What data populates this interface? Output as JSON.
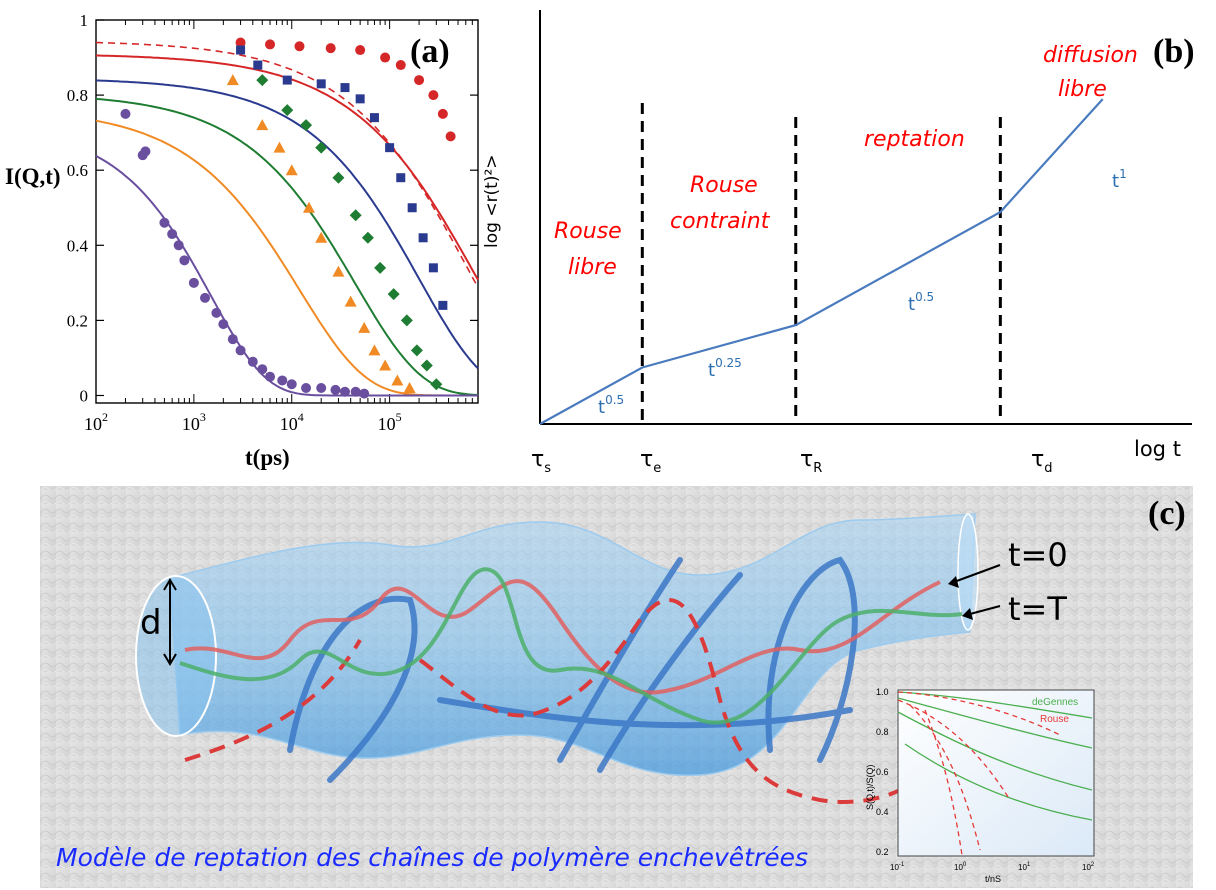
{
  "chart_data": [
    {
      "panel": "(a)",
      "type": "scatter",
      "xlabel": "t(ps)",
      "ylabel": "I(Q,t)",
      "xscale": "log",
      "xlim": [
        100,
        800000
      ],
      "ylim": [
        -0.02,
        1.0
      ],
      "x_ticks": [
        {
          "base": "10",
          "exp": "2",
          "v": 100
        },
        {
          "base": "10",
          "exp": "3",
          "v": 1000
        },
        {
          "base": "10",
          "exp": "4",
          "v": 10000
        },
        {
          "base": "10",
          "exp": "5",
          "v": 100000
        }
      ],
      "y_ticks": [
        {
          "label": "0",
          "v": 0
        },
        {
          "label": "0.2",
          "v": 0.2
        },
        {
          "label": "0.4",
          "v": 0.4
        },
        {
          "label": "0.6",
          "v": 0.6
        },
        {
          "label": "0.8",
          "v": 0.8
        },
        {
          "label": "1",
          "v": 1
        }
      ],
      "grid": false,
      "series": [
        {
          "color": "#d62728",
          "marker": "circle",
          "A": 0.91,
          "tau": 700000,
          "beta": 0.6,
          "dashed_A": 0.945,
          "dashed_tau": 600000,
          "points": [
            [
              3000,
              0.94
            ],
            [
              6000,
              0.935
            ],
            [
              12000,
              0.93
            ],
            [
              25000,
              0.925
            ],
            [
              50000,
              0.92
            ],
            [
              90000,
              0.9
            ],
            [
              130000,
              0.88
            ],
            [
              200000,
              0.84
            ],
            [
              280000,
              0.8
            ],
            [
              350000,
              0.75
            ],
            [
              420000,
              0.69
            ]
          ]
        },
        {
          "color": "#2a3a8f",
          "marker": "square",
          "A": 0.845,
          "tau": 200000,
          "beta": 0.65,
          "points": [
            [
              3000,
              0.92
            ],
            [
              4500,
              0.88
            ],
            [
              9000,
              0.84
            ],
            [
              20000,
              0.83
            ],
            [
              35000,
              0.82
            ],
            [
              50000,
              0.79
            ],
            [
              70000,
              0.74
            ],
            [
              100000,
              0.66
            ],
            [
              130000,
              0.58
            ],
            [
              170000,
              0.5
            ],
            [
              220000,
              0.42
            ],
            [
              280000,
              0.34
            ],
            [
              350000,
              0.24
            ]
          ]
        },
        {
          "color": "#1e7d32",
          "marker": "diamond",
          "A": 0.805,
          "tau": 45000,
          "beta": 0.65,
          "points": [
            [
              5000,
              0.84
            ],
            [
              9000,
              0.76
            ],
            [
              14000,
              0.72
            ],
            [
              20000,
              0.66
            ],
            [
              30000,
              0.58
            ],
            [
              45000,
              0.48
            ],
            [
              60000,
              0.42
            ],
            [
              80000,
              0.34
            ],
            [
              110000,
              0.27
            ],
            [
              150000,
              0.2
            ],
            [
              190000,
              0.12
            ],
            [
              240000,
              0.08
            ],
            [
              300000,
              0.03
            ]
          ]
        },
        {
          "color": "#f08a24",
          "marker": "triangle",
          "A": 0.765,
          "tau": 12000,
          "beta": 0.65,
          "points": [
            [
              2500,
              0.84
            ],
            [
              5000,
              0.72
            ],
            [
              7500,
              0.66
            ],
            [
              10000,
              0.6
            ],
            [
              15000,
              0.5
            ],
            [
              20000,
              0.42
            ],
            [
              30000,
              0.33
            ],
            [
              40000,
              0.25
            ],
            [
              55000,
              0.18
            ],
            [
              70000,
              0.12
            ],
            [
              90000,
              0.08
            ],
            [
              120000,
              0.04
            ],
            [
              160000,
              0.02
            ]
          ]
        },
        {
          "color": "#6a4f9f",
          "marker": "circle",
          "A": 0.72,
          "tau": 1500,
          "beta": 0.78,
          "points": [
            [
              200,
              0.75
            ],
            [
              300,
              0.64
            ],
            [
              320,
              0.65
            ],
            [
              500,
              0.46
            ],
            [
              600,
              0.43
            ],
            [
              700,
              0.4
            ],
            [
              800,
              0.36
            ],
            [
              1000,
              0.3
            ],
            [
              1300,
              0.26
            ],
            [
              1700,
              0.22
            ],
            [
              2000,
              0.19
            ],
            [
              2500,
              0.15
            ],
            [
              3000,
              0.12
            ],
            [
              4000,
              0.09
            ],
            [
              5000,
              0.07
            ],
            [
              6000,
              0.05
            ],
            [
              8000,
              0.04
            ],
            [
              10000,
              0.03
            ],
            [
              14000,
              0.02
            ],
            [
              20000,
              0.02
            ],
            [
              28000,
              0.015
            ],
            [
              35000,
              0.01
            ],
            [
              45000,
              0.01
            ],
            [
              55000,
              0.005
            ]
          ]
        }
      ]
    },
    {
      "panel": "(b)",
      "type": "line",
      "xlabel": "log t",
      "ylabel": "log <r(t)²>",
      "x_ticks": [
        "τ",
        "τ",
        "τ",
        "τ"
      ],
      "x_tick_subs": [
        "s",
        "e",
        "R",
        "d"
      ],
      "regions": [
        "Rouse libre",
        "Rouse contraint",
        "reptation",
        "diffusion libre"
      ],
      "slopes": [
        {
          "base": "t",
          "exp": "0.5"
        },
        {
          "base": "t",
          "exp": "0.25"
        },
        {
          "base": "t",
          "exp": "0.5"
        },
        {
          "base": "t",
          "exp": "1"
        }
      ],
      "points": [
        [
          0,
          0
        ],
        [
          1,
          0.5
        ],
        [
          2.5,
          0.875
        ],
        [
          4.5,
          1.875
        ],
        [
          5.5,
          2.875
        ]
      ],
      "boundaries": [
        1,
        2.5,
        4.5
      ]
    }
  ],
  "labels": {
    "panel_a": "(a)",
    "panel_b": "(b)",
    "panel_c": "(c)",
    "region1_line1": "Rouse",
    "region1_line2": "libre",
    "region2_line1": "Rouse",
    "region2_line2": "contraint",
    "region3": "reptation",
    "region4_line1": "diffusion",
    "region4_line2": "libre",
    "slope1": "t",
    "slope1_exp": "0.5",
    "slope2": "t",
    "slope2_exp": "0.25",
    "slope3": "t",
    "slope3_exp": "0.5",
    "slope4": "t",
    "slope4_exp": "1",
    "b_ylabel": "log <r(t)²>",
    "b_xlabel": "log t",
    "tau": "τ",
    "tau_s": "s",
    "tau_e": "e",
    "tau_R": "R",
    "tau_d": "d",
    "a_xlabel": "t(ps)",
    "a_ylabel": "I(Q,t)",
    "c_d": "d",
    "c_t0": "t=0",
    "c_tT": "t=T",
    "c_caption": "Modèle de reptation des chaînes de polymère enchevêtrées"
  },
  "inset": {
    "ylabel": "S(Q,t)/S(Q)",
    "xlabel": "t/nS",
    "legend": [
      "deGennes",
      "Rouse"
    ],
    "legend_colors": [
      "#4caf50",
      "#e53935"
    ],
    "y_ticks": [
      "1.0",
      "0.8",
      "0.6",
      "0.4",
      "0.2"
    ],
    "x_ticks": [
      {
        "base": "10",
        "exp": "-1"
      },
      {
        "base": "10",
        "exp": "0"
      },
      {
        "base": "10",
        "exp": "1"
      },
      {
        "base": "10",
        "exp": "2"
      }
    ]
  },
  "colors": {
    "b_line": "#4a7bbf",
    "region_text": "#ff0000",
    "slope_text": "#2e6fb0",
    "caption": "#1a2bff",
    "tube": "#5aa8e8",
    "chain_red": "#e06060",
    "chain_green": "#4caf6a"
  }
}
